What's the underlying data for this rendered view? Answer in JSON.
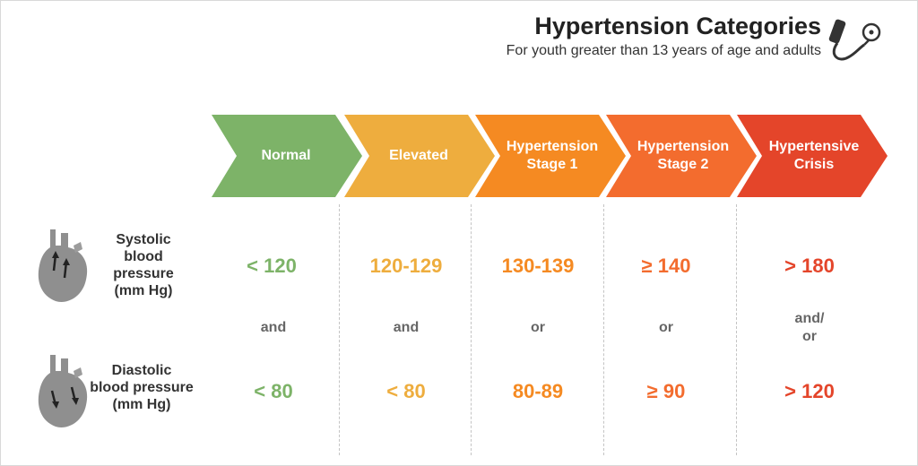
{
  "header": {
    "title": "Hypertension Categories",
    "subtitle": "For youth greater than 13 years of age and adults",
    "icon": "blood-pressure-cuff-icon"
  },
  "rows": {
    "systolic_label": "Systolic\nblood\npressure\n(mm Hg)",
    "diastolic_label": "Diastolic\nblood pressure\n(mm Hg)",
    "icon": "heart-icon"
  },
  "categories": [
    {
      "name": "Normal",
      "color": "#7db368",
      "systolic": "< 120",
      "connector": "and",
      "diastolic": "< 80"
    },
    {
      "name": "Elevated",
      "color": "#eead3e",
      "systolic": "120-129",
      "connector": "and",
      "diastolic": "< 80"
    },
    {
      "name": "Hypertension\nStage 1",
      "color": "#f58a22",
      "systolic": "130-139",
      "connector": "or",
      "diastolic": "80-89"
    },
    {
      "name": "Hypertension\nStage 2",
      "color": "#f36c2e",
      "systolic": "≥ 140",
      "connector": "or",
      "diastolic": "≥ 90"
    },
    {
      "name": "Hypertensive\nCrisis",
      "color": "#e4452a",
      "systolic": "> 180",
      "connector": "and/\nor",
      "diastolic": "> 120"
    }
  ],
  "value_colors": [
    "#7db368",
    "#eead3e",
    "#f58a22",
    "#f36c2e",
    "#e4452a"
  ],
  "connector_color": "#666666"
}
